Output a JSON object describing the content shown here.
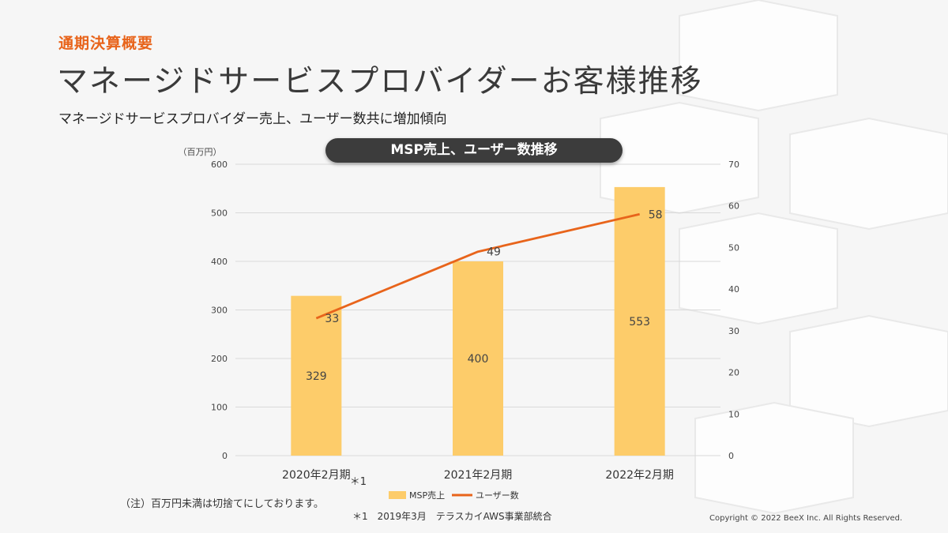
{
  "header": {
    "section_label": "通期決算概要",
    "title": "マネージドサービスプロバイダーお客様推移",
    "subtitle": "マネージドサービスプロバイダー売上、ユーザー数共に増加傾向"
  },
  "chart_data": {
    "type": "bar",
    "title": "MSP売上、ユーザー数推移",
    "categories": [
      "2020年2月期",
      "2021年2月期",
      "2022年2月期"
    ],
    "category_marks": [
      "＊1",
      "",
      ""
    ],
    "y_unit_label": "（百万円）",
    "ylim": [
      0,
      600
    ],
    "y_ticks": [
      0,
      100,
      200,
      300,
      400,
      500,
      600
    ],
    "y2lim": [
      0,
      70
    ],
    "y2_ticks": [
      0,
      10,
      20,
      30,
      40,
      50,
      60,
      70
    ],
    "grid": true,
    "legend_position": "bottom",
    "series": [
      {
        "name": "MSP売上",
        "type": "bar",
        "axis": "left",
        "values": [
          329,
          400,
          553
        ],
        "color": "#fdcc6a"
      },
      {
        "name": "ユーザー数",
        "type": "line",
        "axis": "right",
        "values": [
          33,
          49,
          58
        ],
        "color": "#e8641b"
      }
    ]
  },
  "notes": {
    "note": "（注）百万円未満は切捨てにしております。",
    "footnote": "＊1　2019年3月　テラスカイAWS事業部統合",
    "copyright": "Copyright © 2022 BeeX Inc. All Rights Reserved."
  }
}
